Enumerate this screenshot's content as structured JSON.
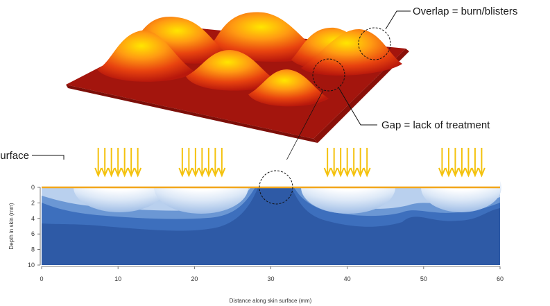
{
  "annotations": {
    "overlap": "Overlap = burn/blisters",
    "gap": "Gap = lack of treatment",
    "surface": "Skin surface"
  },
  "axes": {
    "x_label": "Distance along skin surface (mm)",
    "y_label": "Depth in skin (mm)",
    "x_ticks": [
      "0",
      "10",
      "20",
      "30",
      "40",
      "50",
      "60"
    ],
    "y_ticks": [
      "0",
      "2",
      "4",
      "6",
      "8",
      "10"
    ]
  },
  "colors": {
    "deep": "#2e5aa6",
    "mid": "#3d6fbd",
    "light_blue": "#6b97d4",
    "pale": "#b9d0ee",
    "surface_line": "#f2a61a",
    "arrow": "#f4c20d",
    "plateau": "#a3150d"
  },
  "treatment_centers_mm": [
    10,
    21,
    40,
    55
  ],
  "arrows_per_group": 7
}
